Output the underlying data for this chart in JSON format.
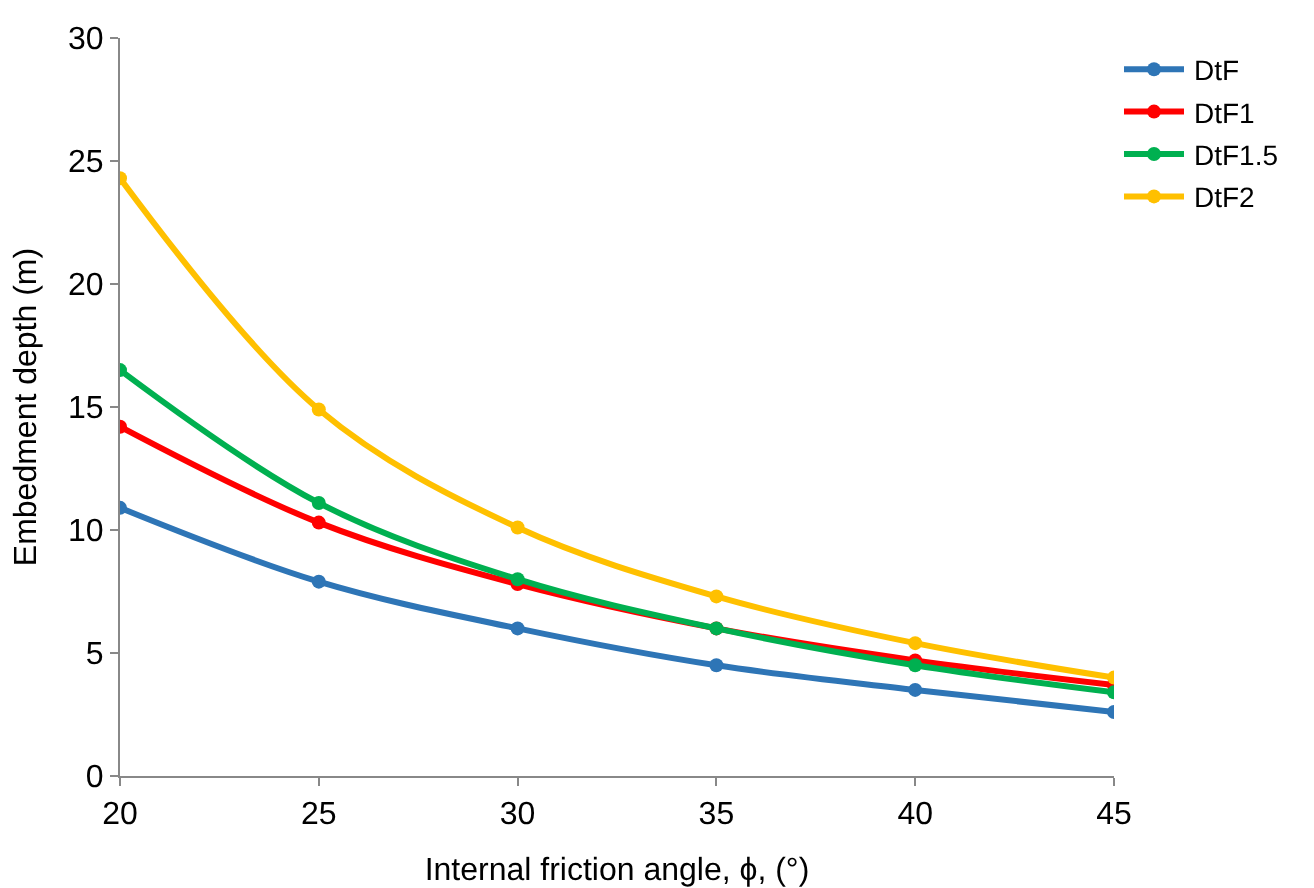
{
  "chart_data": {
    "type": "line",
    "xlabel": "Internal friction angle, ϕ, (°)",
    "ylabel": "Embedment depth (m)",
    "x": [
      20,
      25,
      30,
      35,
      40,
      45
    ],
    "series": [
      {
        "name": "DtF",
        "color": "#2e75b6",
        "values": [
          10.9,
          7.9,
          6.0,
          4.5,
          3.5,
          2.6
        ]
      },
      {
        "name": "DtF1",
        "color": "#ff0000",
        "values": [
          14.2,
          10.3,
          7.8,
          6.0,
          4.7,
          3.7
        ]
      },
      {
        "name": "DtF1.5",
        "color": "#00b050",
        "values": [
          16.5,
          11.1,
          8.0,
          6.0,
          4.5,
          3.4
        ]
      },
      {
        "name": "DtF2",
        "color": "#ffc000",
        "values": [
          24.3,
          14.9,
          10.1,
          7.3,
          5.4,
          4.0
        ]
      }
    ],
    "xlim": [
      20,
      45
    ],
    "xticks": [
      20,
      25,
      30,
      35,
      40,
      45
    ],
    "ylim": [
      0,
      30
    ],
    "yticks": [
      0,
      5,
      10,
      15,
      20,
      25,
      30
    ],
    "grid": false,
    "legend": "top right",
    "marker": "circle",
    "line_style": "solid"
  }
}
